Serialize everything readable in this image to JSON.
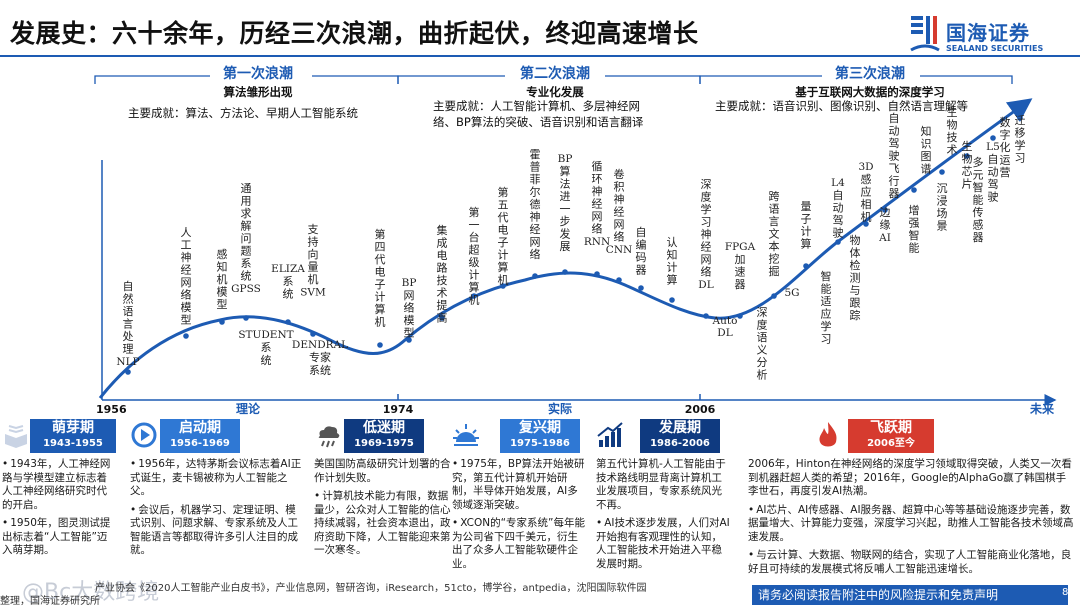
{
  "title": "发展史：六十余年，历经三次浪潮，曲折起伏，终迎高速增长",
  "logo": {
    "name_cn": "国海证券",
    "name_en": "SEALAND SECURITIES",
    "brand_color": "#1d5bb3",
    "icon": "sealand-logo-icon"
  },
  "waves": [
    {
      "heading": "第一次浪潮",
      "subtitle": "算法雏形出现",
      "achievements": "主要成就：算法、方法论、早期人工智能系统"
    },
    {
      "heading": "第二次浪潮",
      "subtitle": "专业化发展",
      "achievements_line1": "主要成就：人工智能计算机、多层神经网",
      "achievements_line2": "络、BP算法的突破、语音识别和语言翻译"
    },
    {
      "heading": "第三次浪潮",
      "subtitle": "基于互联网大数据的深度学习",
      "achievements": "主要成就：语音识别、图像识别、自然语言理解等"
    }
  ],
  "axis": {
    "years": [
      "1956",
      "1974",
      "2006"
    ],
    "phases": [
      "理论",
      "实际",
      "未来"
    ]
  },
  "milestones": [
    {
      "id": "nlp",
      "lines": [
        "自",
        "然",
        "语",
        "言",
        "处",
        "理"
      ],
      "latin": "NLP"
    },
    {
      "id": "ann",
      "lines": [
        "人",
        "工",
        "神",
        "经",
        "网",
        "络",
        "模",
        "型"
      ]
    },
    {
      "id": "perception",
      "lines": [
        "感",
        "知",
        "机",
        "模",
        "型"
      ]
    },
    {
      "id": "gpss",
      "lines": [
        "通",
        "用",
        "求",
        "解",
        "问",
        "题",
        "系",
        "统"
      ],
      "latin": "GPSS"
    },
    {
      "id": "student",
      "latin": "STUDENT",
      "lines": [
        "系",
        "统"
      ]
    },
    {
      "id": "eliza",
      "latin": "ELIZA",
      "lines": [
        "系",
        "统"
      ]
    },
    {
      "id": "svm",
      "lines": [
        "支",
        "持",
        "向",
        "量",
        "机"
      ],
      "latin": "SVM"
    },
    {
      "id": "dendral",
      "latin": "DENDRAL",
      "lines": [
        "专家",
        "系统"
      ]
    },
    {
      "id": "gen4",
      "lines": [
        "第",
        "四",
        "代",
        "电",
        "子",
        "计",
        "算",
        "机"
      ]
    },
    {
      "id": "bp",
      "latin": "BP",
      "lines": [
        "网",
        "络",
        "模",
        "型"
      ]
    },
    {
      "id": "ic",
      "lines": [
        "集",
        "成",
        "电",
        "路",
        "技",
        "术",
        "提",
        "高"
      ]
    },
    {
      "id": "supercomputer",
      "lines": [
        "第",
        "一",
        "台",
        "超",
        "级",
        "计",
        "算",
        "机"
      ]
    },
    {
      "id": "gen5",
      "lines": [
        "第",
        "五",
        "代",
        "电",
        "子",
        "计",
        "算",
        "机"
      ]
    },
    {
      "id": "hopfield",
      "lines": [
        "霍",
        "普",
        "菲",
        "尔",
        "德",
        "神",
        "经",
        "网",
        "络"
      ]
    },
    {
      "id": "bp2",
      "latin": "BP",
      "lines": [
        "算",
        "法",
        "进",
        "一",
        "步",
        "发",
        "展"
      ]
    },
    {
      "id": "rnn",
      "lines": [
        "循",
        "环",
        "神",
        "经",
        "网",
        "络"
      ],
      "latin": "RNN"
    },
    {
      "id": "cnn",
      "lines": [
        "卷",
        "积",
        "神",
        "经",
        "网",
        "络"
      ],
      "latin": "CNN"
    },
    {
      "id": "autoencoder",
      "lines": [
        "自",
        "编",
        "码",
        "器"
      ]
    },
    {
      "id": "cognitive",
      "lines": [
        "认",
        "知",
        "计",
        "算"
      ]
    },
    {
      "id": "dl",
      "lines": [
        "深",
        "度",
        "学",
        "习",
        "神",
        "经",
        "网",
        "络"
      ],
      "latin": "DL"
    },
    {
      "id": "autodl",
      "latin": "Auto DL"
    },
    {
      "id": "fpga",
      "latin": "FPGA",
      "lines": [
        "加",
        "速",
        "器"
      ]
    },
    {
      "id": "deepsem",
      "lines": [
        "深",
        "度",
        "语",
        "义",
        "分",
        "析"
      ]
    },
    {
      "id": "crosslang",
      "lines": [
        "跨",
        "语",
        "言",
        "文",
        "本",
        "挖",
        "掘"
      ]
    },
    {
      "id": "5g",
      "latin": "5G"
    },
    {
      "id": "quantum",
      "lines": [
        "量",
        "子",
        "计",
        "算"
      ]
    },
    {
      "id": "adaptive",
      "lines": [
        "智",
        "能",
        "适",
        "应",
        "学",
        "习"
      ]
    },
    {
      "id": "l4",
      "latin": "L4",
      "lines": [
        "自",
        "动",
        "驾",
        "驶"
      ]
    },
    {
      "id": "3d",
      "latin": "3D",
      "lines": [
        "感",
        "应",
        "相",
        "机"
      ]
    },
    {
      "id": "objdetect",
      "lines": [
        "物",
        "体",
        "检",
        "测",
        "与",
        "跟",
        "踪"
      ]
    },
    {
      "id": "edgeai",
      "lines": [
        "边",
        "缘"
      ],
      "latin": "AI"
    },
    {
      "id": "autofly",
      "lines": [
        "自",
        "动",
        "驾",
        "驶",
        "飞",
        "行",
        "器"
      ]
    },
    {
      "id": "augment",
      "lines": [
        "增",
        "强",
        "智",
        "能"
      ]
    },
    {
      "id": "kg",
      "lines": [
        "知",
        "识",
        "图",
        "谱"
      ]
    },
    {
      "id": "immersive",
      "lines": [
        "沉",
        "浸",
        "场",
        "景"
      ]
    },
    {
      "id": "bio",
      "lines": [
        "生",
        "物",
        "技",
        "术"
      ]
    },
    {
      "id": "biochip",
      "lines": [
        "生",
        "物",
        "芯",
        "片"
      ]
    },
    {
      "id": "multisensor",
      "lines": [
        "多",
        "元",
        "智",
        "能",
        "传",
        "感",
        "器"
      ]
    },
    {
      "id": "l5",
      "latin": "L5",
      "lines": [
        "自",
        "动",
        "驾",
        "驶"
      ]
    },
    {
      "id": "digitalops",
      "lines": [
        "数",
        "字",
        "化",
        "运",
        "营"
      ]
    },
    {
      "id": "transfer",
      "lines": [
        "迁",
        "移",
        "学",
        "习"
      ]
    }
  ],
  "stages": [
    {
      "name": "萌芽期",
      "years": "1943-1955",
      "color": "#1d5bb3",
      "icon": "book-icon",
      "items": [
        "1943年，人工神经网路与学模型建立标志着人工神经网络研究时代的开启。",
        "1950年，图灵测试提出标志着“人工智能”迈入萌芽期。"
      ]
    },
    {
      "name": "启动期",
      "years": "1956-1969",
      "color": "#2f78d4",
      "icon": "play-icon",
      "items": [
        "1956年，达特茅斯会议标志着AI正式诞生，麦卡锡被称为人工智能之父。",
        "会议后，机器学习、定理证明、模式识别、问题求解、专家系统及人工智能语言等都取得许多引人注目的成就。"
      ]
    },
    {
      "name": "低迷期",
      "years": "1969-1975",
      "color": "#0f3a80",
      "icon": "storm-icon",
      "items": [
        "美国国防高级研究计划署的合作计划失败。",
        "计算机技术能力有限，数据量少，公众对人工智能的信心持续减弱，社会资本退出，政府资助下降，人工智能迎来第一次寒冬。"
      ]
    },
    {
      "name": "复兴期",
      "years": "1975-1986",
      "color": "#2f78d4",
      "icon": "sunrise-icon",
      "items": [
        "1975年，BP算法开始被研究，第五代计算机开始研制，半导体开始发展，AI多领域逐渐突破。",
        "XCON的“专家系统”每年能为公司省下四千美元，衍生出了众多人工智能软硬件企业。"
      ]
    },
    {
      "name": "发展期",
      "years": "1986-2006",
      "color": "#0f3a80",
      "icon": "growth-chart-icon",
      "items": [
        "第五代计算机-人工智能由于技术路线明显背离计算机工业发展项目，专家系统风光不再。",
        "AI技术逐步发展，人们对AI开始抱有客观理性的认知，人工智能技术开始进入平稳发展时期。"
      ]
    },
    {
      "name": "飞跃期",
      "years": "2006至今",
      "color": "#d63b2f",
      "icon": "flame-icon",
      "items": [
        "2006年，Hinton在神经网络的深度学习领域取得突破，人类又一次看到机器赶超人类的希望；2016年，Google的AlphaGo赢了韩国棋手李世石，再度引发AI热潮。",
        "AI芯片、AI传感器、AI服务器、超算中心等等基础设施逐步完善，数据量增大、计算能力变强，深度学习兴起，助推人工智能各技术领域高速发展。",
        "与云计算、大数据、物联网的结合，实现了人工智能商业化落地，良好且可持续的发展模式将反哺人工智能迅速增长。"
      ]
    }
  ],
  "footer": {
    "source_line1": "产业协会《2020人工智能产业白皮书》，产业信息网，智研咨询，iResearch，51cto，博学谷，antpedia，沈阳国际软件园",
    "source_line2": "整理，国海证券研究所",
    "watermark": "@Bc大数跨境",
    "disclaimer": "请务必阅读报告附注中的风险提示和免责声明",
    "page": "8"
  }
}
